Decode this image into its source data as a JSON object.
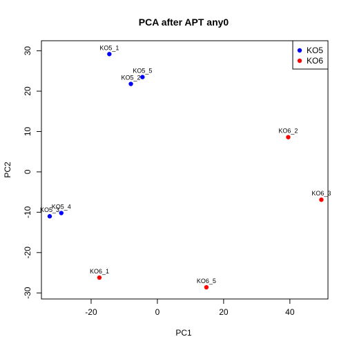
{
  "chart_data": {
    "type": "scatter",
    "title": "PCA after APT any0",
    "xlabel": "PC1",
    "ylabel": "PC2",
    "xlim": [
      -35,
      51.5
    ],
    "ylim": [
      -31.5,
      32.5
    ],
    "xticks": [
      -20,
      0,
      20,
      40
    ],
    "yticks": [
      -30,
      -20,
      -10,
      0,
      10,
      20,
      30
    ],
    "grid": false,
    "legend_position": "top-right",
    "series": [
      {
        "name": "KO5",
        "color": "#0000ff",
        "points": [
          {
            "label": "KO5_1",
            "x": -14.5,
            "y": 29.2
          },
          {
            "label": "KO5_2",
            "x": -8.0,
            "y": 21.8
          },
          {
            "label": "KO5_5",
            "x": -4.5,
            "y": 23.5
          },
          {
            "label": "KO5_3",
            "x": -32.5,
            "y": -11.0
          },
          {
            "label": "KO5_4",
            "x": -29.0,
            "y": -10.2
          }
        ]
      },
      {
        "name": "KO6",
        "color": "#ff0000",
        "points": [
          {
            "label": "KO6_2",
            "x": 39.5,
            "y": 8.6
          },
          {
            "label": "KO6_3",
            "x": 49.5,
            "y": -6.9
          },
          {
            "label": "KO6_1",
            "x": -17.5,
            "y": -26.2
          },
          {
            "label": "KO6_5",
            "x": 14.8,
            "y": -28.6
          }
        ]
      }
    ]
  }
}
